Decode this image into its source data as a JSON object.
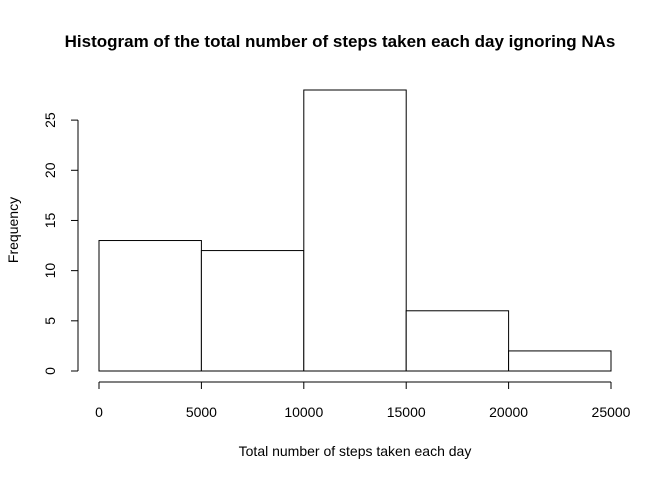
{
  "chart_data": {
    "type": "bar",
    "title": "Histogram of the total number of steps taken each day ignoring NAs",
    "xlabel": "Total number of steps taken each day",
    "ylabel": "Frequency",
    "bins": [
      {
        "start": 0,
        "end": 5000,
        "count": 13
      },
      {
        "start": 5000,
        "end": 10000,
        "count": 12
      },
      {
        "start": 10000,
        "end": 15000,
        "count": 28
      },
      {
        "start": 15000,
        "end": 20000,
        "count": 6
      },
      {
        "start": 20000,
        "end": 25000,
        "count": 2
      }
    ],
    "xlim": [
      0,
      25000
    ],
    "ylim": [
      0,
      28
    ],
    "x_ticks": [
      0,
      5000,
      10000,
      15000,
      20000,
      25000
    ],
    "y_ticks": [
      0,
      5,
      10,
      15,
      20,
      25
    ],
    "grid": false,
    "colors": {
      "bar_fill": "#ffffff",
      "bar_stroke": "#000000"
    }
  }
}
